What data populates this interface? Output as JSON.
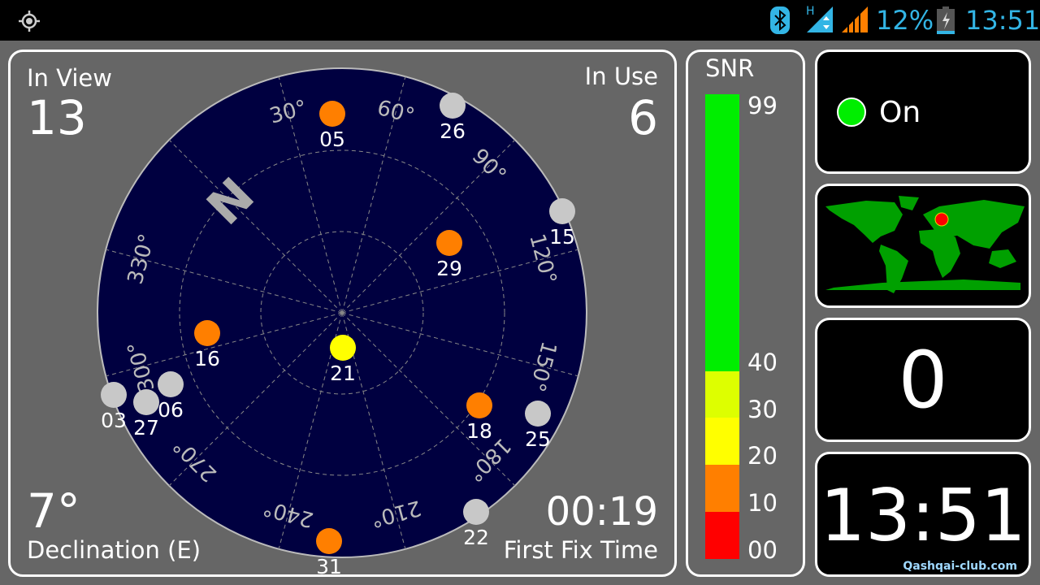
{
  "statusbar": {
    "battery": "12%",
    "time": "13:51",
    "network_type": "H",
    "icons": [
      "gps-icon",
      "bluetooth-icon",
      "mobile-data-icon",
      "signal-icon",
      "battery-charging-icon"
    ],
    "accent": "#33b5e5",
    "signal_color": "#ff7f00"
  },
  "radar": {
    "in_view_label": "In View",
    "in_view": "13",
    "in_use_label": "In Use",
    "in_use": "6",
    "declination": "7°",
    "declination_label": "Declination (E)",
    "fix_time": "00:19",
    "fix_time_label": "First Fix Time",
    "north": "N",
    "azimuth_labels": [
      "30°",
      "60°",
      "90°",
      "120°",
      "150°",
      "180°",
      "210°",
      "240°",
      "270°",
      "300°",
      "330°"
    ],
    "satellites": [
      {
        "id": "05",
        "color": "#ff7f00"
      },
      {
        "id": "26",
        "color": "#c8c8c8"
      },
      {
        "id": "15",
        "color": "#c8c8c8"
      },
      {
        "id": "29",
        "color": "#ff7f00"
      },
      {
        "id": "16",
        "color": "#ff7f00"
      },
      {
        "id": "21",
        "color": "#ffff00"
      },
      {
        "id": "06",
        "color": "#c8c8c8"
      },
      {
        "id": "27",
        "color": "#c8c8c8"
      },
      {
        "id": "03",
        "color": "#c8c8c8"
      },
      {
        "id": "18",
        "color": "#ff7f00"
      },
      {
        "id": "25",
        "color": "#c8c8c8"
      },
      {
        "id": "22",
        "color": "#c8c8c8"
      },
      {
        "id": "31",
        "color": "#ff7f00"
      }
    ]
  },
  "snr": {
    "title": "SNR",
    "labels": [
      "99",
      "40",
      "30",
      "20",
      "10",
      "00"
    ],
    "colors": {
      "high": "#00ee00",
      "30": "#ddff00",
      "20": "#ffff00",
      "10": "#ff7f00",
      "0": "#ff0000"
    }
  },
  "status": {
    "label": "On",
    "color": "#00ee00"
  },
  "map": {
    "marker_color": "#ff0000",
    "land_color": "#00a000"
  },
  "count": "0",
  "clock": "13:51",
  "watermark": "Qashqai-club.com"
}
